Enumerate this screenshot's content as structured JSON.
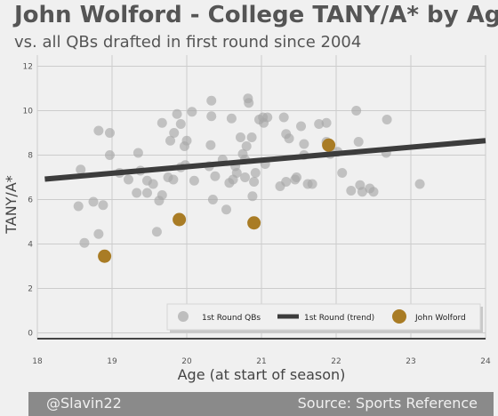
{
  "header": {
    "title": "John Wolford - College TANY/A* by Age",
    "subtitle": "vs. all QBs drafted in first round since 2004"
  },
  "footer": {
    "left": "@Slavin22",
    "right": "Source: Sports Reference"
  },
  "chart_data": {
    "type": "scatter",
    "xlabel": "Age (at start of season)",
    "ylabel": "TANY/A*",
    "xlim": [
      18,
      24
    ],
    "ylim": [
      -0.3,
      12.5
    ],
    "xticks": [
      18,
      19,
      20,
      21,
      22,
      23,
      24
    ],
    "yticks": [
      0,
      2,
      4,
      6,
      8,
      10,
      12
    ],
    "grid": true,
    "legend_position": "lower-right",
    "colors": {
      "first_round": "#a8a8a8",
      "trend": "#3c3c3c",
      "wolford": "#a97c25",
      "grid": "#cccccc",
      "axis_text": "#555555"
    },
    "series": [
      {
        "name": "1st Round QBs",
        "kind": "scatter",
        "x": [
          18.58,
          18.55,
          18.63,
          18.75,
          18.82,
          18.88,
          18.82,
          18.97,
          18.97,
          19.1,
          19.22,
          19.35,
          19.33,
          19.38,
          19.47,
          19.47,
          19.55,
          19.6,
          19.63,
          19.67,
          19.67,
          19.75,
          19.78,
          19.82,
          19.83,
          19.87,
          19.92,
          19.92,
          19.98,
          19.97,
          20.0,
          20.07,
          20.1,
          20.3,
          20.32,
          20.33,
          20.33,
          20.35,
          20.38,
          20.48,
          20.53,
          20.57,
          20.6,
          20.62,
          20.65,
          20.67,
          20.72,
          20.75,
          20.78,
          20.78,
          20.8,
          20.82,
          20.83,
          20.87,
          20.88,
          20.9,
          20.92,
          20.97,
          21.02,
          21.03,
          21.05,
          21.08,
          21.25,
          21.3,
          21.33,
          21.33,
          21.37,
          21.45,
          21.47,
          21.53,
          21.57,
          21.57,
          21.62,
          21.68,
          21.77,
          21.87,
          21.87,
          21.92,
          22.02,
          22.08,
          22.2,
          22.27,
          22.3,
          22.32,
          22.35,
          22.45,
          22.5,
          22.67,
          22.68,
          23.12
        ],
        "y": [
          7.35,
          5.7,
          4.05,
          5.9,
          9.1,
          5.75,
          4.45,
          9.0,
          8.0,
          7.2,
          6.9,
          8.1,
          6.3,
          7.3,
          6.85,
          6.3,
          6.7,
          4.55,
          5.95,
          6.2,
          9.45,
          7.0,
          8.65,
          6.9,
          9.0,
          9.85,
          9.4,
          7.45,
          7.55,
          8.4,
          8.65,
          9.95,
          6.85,
          7.5,
          8.45,
          10.45,
          9.75,
          6.0,
          7.05,
          7.8,
          5.55,
          6.75,
          9.65,
          6.9,
          7.5,
          7.2,
          8.8,
          8.05,
          7.8,
          7.0,
          8.4,
          10.55,
          10.35,
          8.8,
          6.15,
          6.8,
          7.2,
          9.6,
          9.7,
          9.45,
          7.6,
          9.7,
          6.6,
          9.7,
          8.95,
          6.8,
          8.75,
          6.9,
          7.0,
          9.3,
          8.5,
          8.0,
          6.7,
          6.7,
          9.4,
          9.45,
          8.6,
          8.05,
          8.15,
          7.2,
          6.4,
          10.0,
          8.6,
          6.65,
          6.35,
          6.5,
          6.35,
          8.1,
          9.6,
          6.7
        ]
      },
      {
        "name": "1st Round (trend)",
        "kind": "line",
        "x": [
          18.1,
          24.0
        ],
        "y": [
          6.92,
          8.65
        ]
      },
      {
        "name": "John Wolford",
        "kind": "scatter",
        "x": [
          18.9,
          19.9,
          20.9,
          21.9
        ],
        "y": [
          3.45,
          5.1,
          4.95,
          8.45
        ]
      }
    ]
  }
}
